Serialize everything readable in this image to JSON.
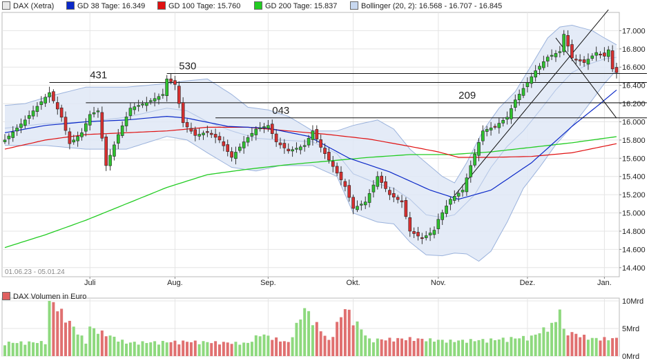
{
  "chart_data": {
    "type": "candlestick",
    "legend": [
      {
        "label": "DAX (Xetra)",
        "color": "#e8e8e8"
      },
      {
        "label": "GD 38 Tage: 16.349",
        "color": "#0a28c8"
      },
      {
        "label": "GD 100 Tage: 15.760",
        "color": "#e01010"
      },
      {
        "label": "GD 200 Tage: 15.837",
        "color": "#22cc22"
      },
      {
        "label": "Bollinger (20, 2): 16.568 - 16.707 - 16.845",
        "color": "#c8d8f0"
      }
    ],
    "date_range_label": "01.06.23 - 05.01.24",
    "y_ticks": [
      "17.000",
      "16.800",
      "16.600",
      "16.400",
      "16.200",
      "16.000",
      "15.800",
      "15.600",
      "15.400",
      "15.200",
      "15.000",
      "14.800",
      "14.600",
      "14.400"
    ],
    "y_tick_values": [
      17000,
      16800,
      16600,
      16400,
      16200,
      16000,
      15800,
      15600,
      15400,
      15200,
      15000,
      14800,
      14600,
      14400
    ],
    "ylim": [
      14300,
      17200
    ],
    "x_ticks": [
      {
        "label": "Juli",
        "index": 21
      },
      {
        "label": "Aug.",
        "index": 42
      },
      {
        "label": "Sep.",
        "index": 65
      },
      {
        "label": "Okt.",
        "index": 86
      },
      {
        "label": "Nov.",
        "index": 107
      },
      {
        "label": "Dez.",
        "index": 129
      },
      {
        "label": "Jan.",
        "index": 148
      }
    ],
    "n_days": 152,
    "key_close_path": [
      [
        0,
        15800
      ],
      [
        5,
        16020
      ],
      [
        10,
        16270
      ],
      [
        11,
        16320
      ],
      [
        14,
        16050
      ],
      [
        16,
        15760
      ],
      [
        19,
        15880
      ],
      [
        21,
        16080
      ],
      [
        23,
        16120
      ],
      [
        25,
        15520
      ],
      [
        28,
        15860
      ],
      [
        31,
        16150
      ],
      [
        35,
        16210
      ],
      [
        39,
        16300
      ],
      [
        40,
        16470
      ],
      [
        42,
        16410
      ],
      [
        44,
        15990
      ],
      [
        47,
        15850
      ],
      [
        50,
        15890
      ],
      [
        53,
        15800
      ],
      [
        56,
        15610
      ],
      [
        59,
        15780
      ],
      [
        62,
        15920
      ],
      [
        65,
        15960
      ],
      [
        67,
        15780
      ],
      [
        70,
        15680
      ],
      [
        74,
        15740
      ],
      [
        76,
        15900
      ],
      [
        78,
        15720
      ],
      [
        81,
        15510
      ],
      [
        84,
        15290
      ],
      [
        86,
        15050
      ],
      [
        89,
        15120
      ],
      [
        92,
        15400
      ],
      [
        95,
        15200
      ],
      [
        98,
        15120
      ],
      [
        100,
        14800
      ],
      [
        103,
        14720
      ],
      [
        106,
        14810
      ],
      [
        107,
        14930
      ],
      [
        110,
        15150
      ],
      [
        113,
        15250
      ],
      [
        115,
        15520
      ],
      [
        118,
        15900
      ],
      [
        121,
        15950
      ],
      [
        124,
        16050
      ],
      [
        126,
        16240
      ],
      [
        129,
        16430
      ],
      [
        131,
        16560
      ],
      [
        134,
        16710
      ],
      [
        137,
        16770
      ],
      [
        138,
        16960
      ],
      [
        140,
        16700
      ],
      [
        143,
        16650
      ],
      [
        146,
        16760
      ],
      [
        148,
        16720
      ],
      [
        149,
        16790
      ],
      [
        150,
        16580
      ],
      [
        151,
        16540
      ]
    ],
    "key_volume_path": [
      [
        0,
        2.3
      ],
      [
        10,
        2.4
      ],
      [
        11,
        10.0
      ],
      [
        20,
        2.4
      ],
      [
        21,
        4.9
      ],
      [
        30,
        2.3
      ],
      [
        45,
        2.5
      ],
      [
        60,
        2.2
      ],
      [
        63,
        3.8
      ],
      [
        70,
        2.3
      ],
      [
        74,
        8.2
      ],
      [
        80,
        2.6
      ],
      [
        84,
        8.3
      ],
      [
        90,
        2.8
      ],
      [
        100,
        3.0
      ],
      [
        110,
        2.6
      ],
      [
        120,
        2.8
      ],
      [
        130,
        3.3
      ],
      [
        136,
        5.8
      ],
      [
        137,
        8.6
      ],
      [
        138,
        4.3
      ],
      [
        145,
        3.0
      ],
      [
        151,
        3.0
      ]
    ],
    "sma38_path": [
      [
        0,
        15880
      ],
      [
        10,
        15960
      ],
      [
        20,
        16000
      ],
      [
        30,
        16020
      ],
      [
        40,
        16060
      ],
      [
        45,
        16040
      ],
      [
        55,
        15950
      ],
      [
        65,
        15930
      ],
      [
        75,
        15840
      ],
      [
        85,
        15600
      ],
      [
        95,
        15450
      ],
      [
        105,
        15250
      ],
      [
        112,
        15150
      ],
      [
        120,
        15250
      ],
      [
        130,
        15550
      ],
      [
        140,
        15950
      ],
      [
        147,
        16200
      ],
      [
        151,
        16349
      ]
    ],
    "sma100_path": [
      [
        0,
        15700
      ],
      [
        10,
        15800
      ],
      [
        20,
        15860
      ],
      [
        30,
        15880
      ],
      [
        40,
        15900
      ],
      [
        50,
        15940
      ],
      [
        60,
        15940
      ],
      [
        70,
        15900
      ],
      [
        80,
        15860
      ],
      [
        90,
        15810
      ],
      [
        100,
        15730
      ],
      [
        107,
        15670
      ],
      [
        112,
        15610
      ],
      [
        120,
        15610
      ],
      [
        130,
        15620
      ],
      [
        140,
        15660
      ],
      [
        151,
        15760
      ]
    ],
    "sma200_path": [
      [
        0,
        14620
      ],
      [
        10,
        14760
      ],
      [
        20,
        14920
      ],
      [
        30,
        15100
      ],
      [
        40,
        15280
      ],
      [
        50,
        15420
      ],
      [
        60,
        15480
      ],
      [
        70,
        15530
      ],
      [
        80,
        15570
      ],
      [
        90,
        15610
      ],
      [
        100,
        15640
      ],
      [
        110,
        15640
      ],
      [
        120,
        15670
      ],
      [
        130,
        15720
      ],
      [
        140,
        15770
      ],
      [
        151,
        15837
      ]
    ],
    "bollinger_upper_path": [
      [
        0,
        16180
      ],
      [
        5,
        16200
      ],
      [
        11,
        16280
      ],
      [
        20,
        16380
      ],
      [
        30,
        16380
      ],
      [
        40,
        16420
      ],
      [
        45,
        16450
      ],
      [
        50,
        16470
      ],
      [
        56,
        16300
      ],
      [
        60,
        16160
      ],
      [
        65,
        16130
      ],
      [
        70,
        16060
      ],
      [
        76,
        15900
      ],
      [
        82,
        15900
      ],
      [
        86,
        15960
      ],
      [
        92,
        16020
      ],
      [
        96,
        15920
      ],
      [
        100,
        15700
      ],
      [
        104,
        15550
      ],
      [
        108,
        15400
      ],
      [
        111,
        15330
      ],
      [
        114,
        15550
      ],
      [
        118,
        15900
      ],
      [
        122,
        16150
      ],
      [
        126,
        16330
      ],
      [
        130,
        16620
      ],
      [
        134,
        16920
      ],
      [
        137,
        17040
      ],
      [
        140,
        17060
      ],
      [
        145,
        17000
      ],
      [
        148,
        16920
      ],
      [
        151,
        16845
      ]
    ],
    "bollinger_mid_path": [
      [
        0,
        15930
      ],
      [
        10,
        15980
      ],
      [
        20,
        16000
      ],
      [
        30,
        16050
      ],
      [
        40,
        16150
      ],
      [
        45,
        16120
      ],
      [
        50,
        16000
      ],
      [
        56,
        15900
      ],
      [
        62,
        15820
      ],
      [
        68,
        15800
      ],
      [
        76,
        15780
      ],
      [
        82,
        15650
      ],
      [
        86,
        15430
      ],
      [
        92,
        15320
      ],
      [
        96,
        15270
      ],
      [
        100,
        15150
      ],
      [
        104,
        14980
      ],
      [
        108,
        14950
      ],
      [
        111,
        14980
      ],
      [
        116,
        15200
      ],
      [
        120,
        15500
      ],
      [
        124,
        15730
      ],
      [
        128,
        15900
      ],
      [
        132,
        16120
      ],
      [
        136,
        16350
      ],
      [
        140,
        16540
      ],
      [
        144,
        16630
      ],
      [
        148,
        16690
      ],
      [
        151,
        16707
      ]
    ],
    "bollinger_lower_path": [
      [
        0,
        15740
      ],
      [
        10,
        15740
      ],
      [
        20,
        15700
      ],
      [
        30,
        15700
      ],
      [
        40,
        15840
      ],
      [
        45,
        15800
      ],
      [
        50,
        15660
      ],
      [
        56,
        15500
      ],
      [
        62,
        15460
      ],
      [
        68,
        15520
      ],
      [
        76,
        15520
      ],
      [
        82,
        15400
      ],
      [
        86,
        15000
      ],
      [
        92,
        14900
      ],
      [
        96,
        14880
      ],
      [
        100,
        14680
      ],
      [
        104,
        14540
      ],
      [
        108,
        14530
      ],
      [
        111,
        14560
      ],
      [
        114,
        14550
      ],
      [
        117,
        14470
      ],
      [
        120,
        14580
      ],
      [
        124,
        14900
      ],
      [
        128,
        15270
      ],
      [
        132,
        15500
      ],
      [
        136,
        15750
      ],
      [
        140,
        15950
      ],
      [
        144,
        16180
      ],
      [
        148,
        16420
      ],
      [
        151,
        16568
      ]
    ],
    "horizontal_levels": [
      {
        "label": "431",
        "value": 16431,
        "from_index": 11,
        "label_index": 21
      },
      {
        "label": "530",
        "value": 16530,
        "from_index": 40,
        "label_index": 43
      },
      {
        "label": "043",
        "value": 16043,
        "from_index": 52,
        "label_index": 66
      },
      {
        "label": "209",
        "value": 16209,
        "from_index": 20,
        "label_index": 112
      }
    ],
    "trend_lines": [
      {
        "from": [
          111,
          15190
        ],
        "to": [
          149,
          17230
        ]
      },
      {
        "from": [
          136,
          16920
        ],
        "to": [
          151,
          16040
        ]
      }
    ],
    "volume_panel": {
      "title": "DAX Volumen in Euro",
      "y_ticks": [
        "10Mrd",
        "5Mrd",
        "0Mrd"
      ],
      "y_tick_values": [
        10,
        5,
        0
      ],
      "ylim": [
        0,
        10
      ],
      "x_ticks": [
        "Juli",
        "Aug.",
        "Sep.",
        "Okt.",
        "Nov.",
        "Dez.",
        "Jan."
      ]
    }
  }
}
